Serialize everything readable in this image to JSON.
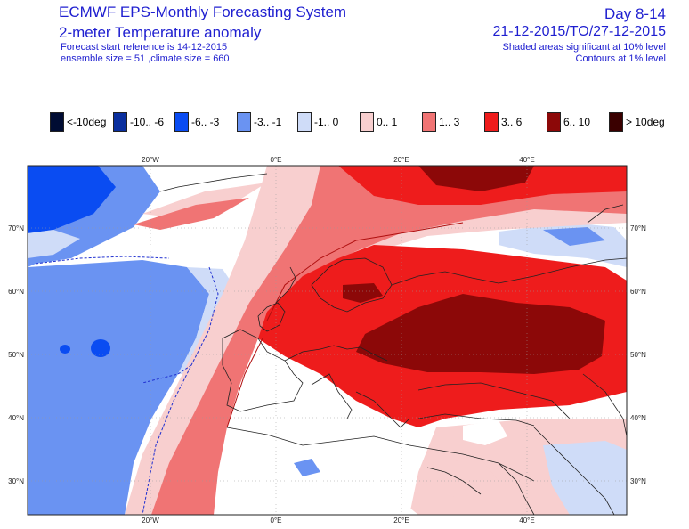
{
  "header": {
    "title": "ECMWF EPS-Monthly Forecasting System",
    "subtitle": "2-meter Temperature anomaly",
    "forecast_reference": "Forecast start reference is 14-12-2015",
    "ensemble_info": "ensemble size = 51  ,climate size = 660",
    "day_range": "Day 8-14",
    "date_range": "21-12-2015/TO/27-12-2015",
    "significance_shaded": "Shaded areas significant at 10% level",
    "significance_contours": "Contours at 1% level"
  },
  "legend": [
    {
      "label": "<-10deg",
      "color": "#000c33"
    },
    {
      "label": "-10.. -6",
      "color": "#0a2f9e"
    },
    {
      "label": "-6.. -3",
      "color": "#0a4cf2"
    },
    {
      "label": "-3.. -1",
      "color": "#6a93f2"
    },
    {
      "label": "-1.. 0",
      "color": "#cfdcf8"
    },
    {
      "label": "0.. 1",
      "color": "#f8cfcf"
    },
    {
      "label": "1.. 3",
      "color": "#f07474"
    },
    {
      "label": "3.. 6",
      "color": "#ee1c1c"
    },
    {
      "label": "6.. 10",
      "color": "#8c0808"
    },
    {
      "label": "> 10deg",
      "color": "#3a0000"
    }
  ],
  "map": {
    "lon_labels": [
      "20°W",
      "0°E",
      "20°E",
      "40°E"
    ],
    "lat_labels": [
      "70°N",
      "60°N",
      "50°N",
      "40°N",
      "30°N"
    ]
  }
}
